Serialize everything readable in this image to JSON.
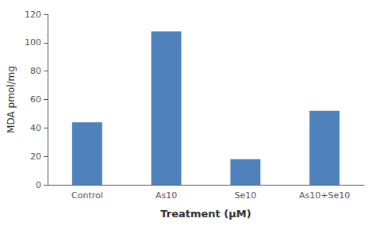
{
  "chart_data": {
    "type": "bar",
    "categories": [
      "Control",
      "As10",
      "Se10",
      "As10+Se10"
    ],
    "values": [
      44,
      108,
      18,
      52
    ],
    "color": "#4f81bd",
    "xlabel": "Treatment (μM)",
    "ylabel": "MDA pmol/mg",
    "ylim": [
      0,
      120
    ],
    "yticks": [
      0,
      20,
      40,
      60,
      80,
      100,
      120
    ],
    "grid": false
  }
}
